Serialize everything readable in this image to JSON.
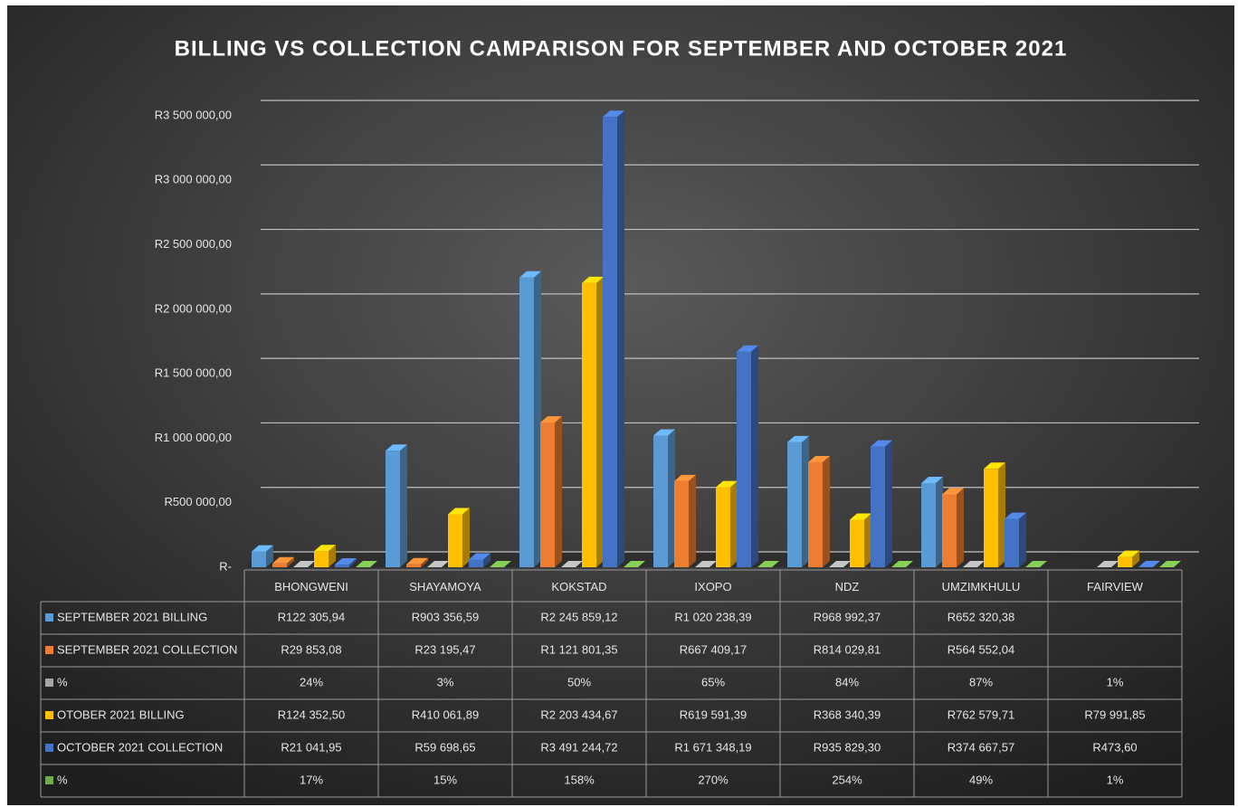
{
  "chart_data": {
    "type": "bar",
    "title": "BILLING VS COLLECTION CAMPARISON FOR SEPTEMBER AND OCTOBER 2021",
    "categories": [
      "BHONGWENI",
      "SHAYAMOYA",
      "KOKSTAD",
      "IXOPO",
      "NDZ",
      "UMZIMKHULU",
      "FAIRVIEW"
    ],
    "series": [
      {
        "name": "SEPTEMBER 2021 BILLING",
        "color": "#5b9bd5",
        "values": [
          122305.94,
          903356.59,
          2245859.12,
          1020238.39,
          968992.37,
          652320.38,
          null
        ],
        "value_labels": [
          "R122 305,94",
          "R903 356,59",
          "R2 245 859,12",
          "R1 020 238,39",
          "R968 992,37",
          "R652 320,38",
          null
        ]
      },
      {
        "name": "SEPTEMBER 2021 COLLECTION",
        "color": "#ed7d31",
        "values": [
          29853.08,
          23195.47,
          1121801.35,
          667409.17,
          814029.81,
          564552.04,
          null
        ],
        "value_labels": [
          "R29 853,08",
          "R23 195,47",
          "R1 121 801,35",
          "R667 409,17",
          "R814 029,81",
          "R564 552,04",
          null
        ]
      },
      {
        "name": "%",
        "color": "#a5a5a5",
        "values": [
          24,
          3,
          50,
          65,
          84,
          87,
          1
        ],
        "value_labels": [
          "24%",
          "3%",
          "50%",
          "65%",
          "84%",
          "87%",
          "1%"
        ]
      },
      {
        "name": "OTOBER 2021 BILLING",
        "color": "#ffc000",
        "values": [
          124352.5,
          410061.89,
          2203434.67,
          619591.39,
          368340.39,
          762579.71,
          79991.85
        ],
        "value_labels": [
          "R124 352,50",
          "R410 061,89",
          "R2 203 434,67",
          "R619 591,39",
          "R368 340,39",
          "R762 579,71",
          "R79 991,85"
        ]
      },
      {
        "name": "OCTOBER 2021 COLLECTION",
        "color": "#4472c4",
        "values": [
          21041.95,
          59698.65,
          3491244.72,
          1671348.19,
          935829.3,
          374667.57,
          473.6
        ],
        "value_labels": [
          "R21 041,95",
          "R59 698,65",
          "R3 491 244,72",
          "R1 671 348,19",
          "R935 829,30",
          "R374 667,57",
          "R473,60"
        ]
      },
      {
        "name": "%",
        "color": "#70ad47",
        "values": [
          17,
          15,
          158,
          270,
          254,
          49,
          1
        ],
        "value_labels": [
          "17%",
          "15%",
          "158%",
          "270%",
          "254%",
          "49%",
          "1%"
        ]
      }
    ],
    "ylim": [
      0,
      3500000
    ],
    "yticks": [
      {
        "value": 0,
        "label": "R-"
      },
      {
        "value": 500000,
        "label": "R500 000,00"
      },
      {
        "value": 1000000,
        "label": "R1 000 000,00"
      },
      {
        "value": 1500000,
        "label": "R1 500 000,00"
      },
      {
        "value": 2000000,
        "label": "R2 000 000,00"
      },
      {
        "value": 2500000,
        "label": "R2 500 000,00"
      },
      {
        "value": 3000000,
        "label": "R3 000 000,00"
      },
      {
        "value": 3500000,
        "label": "R3 500 000,00"
      }
    ],
    "grid": true
  }
}
